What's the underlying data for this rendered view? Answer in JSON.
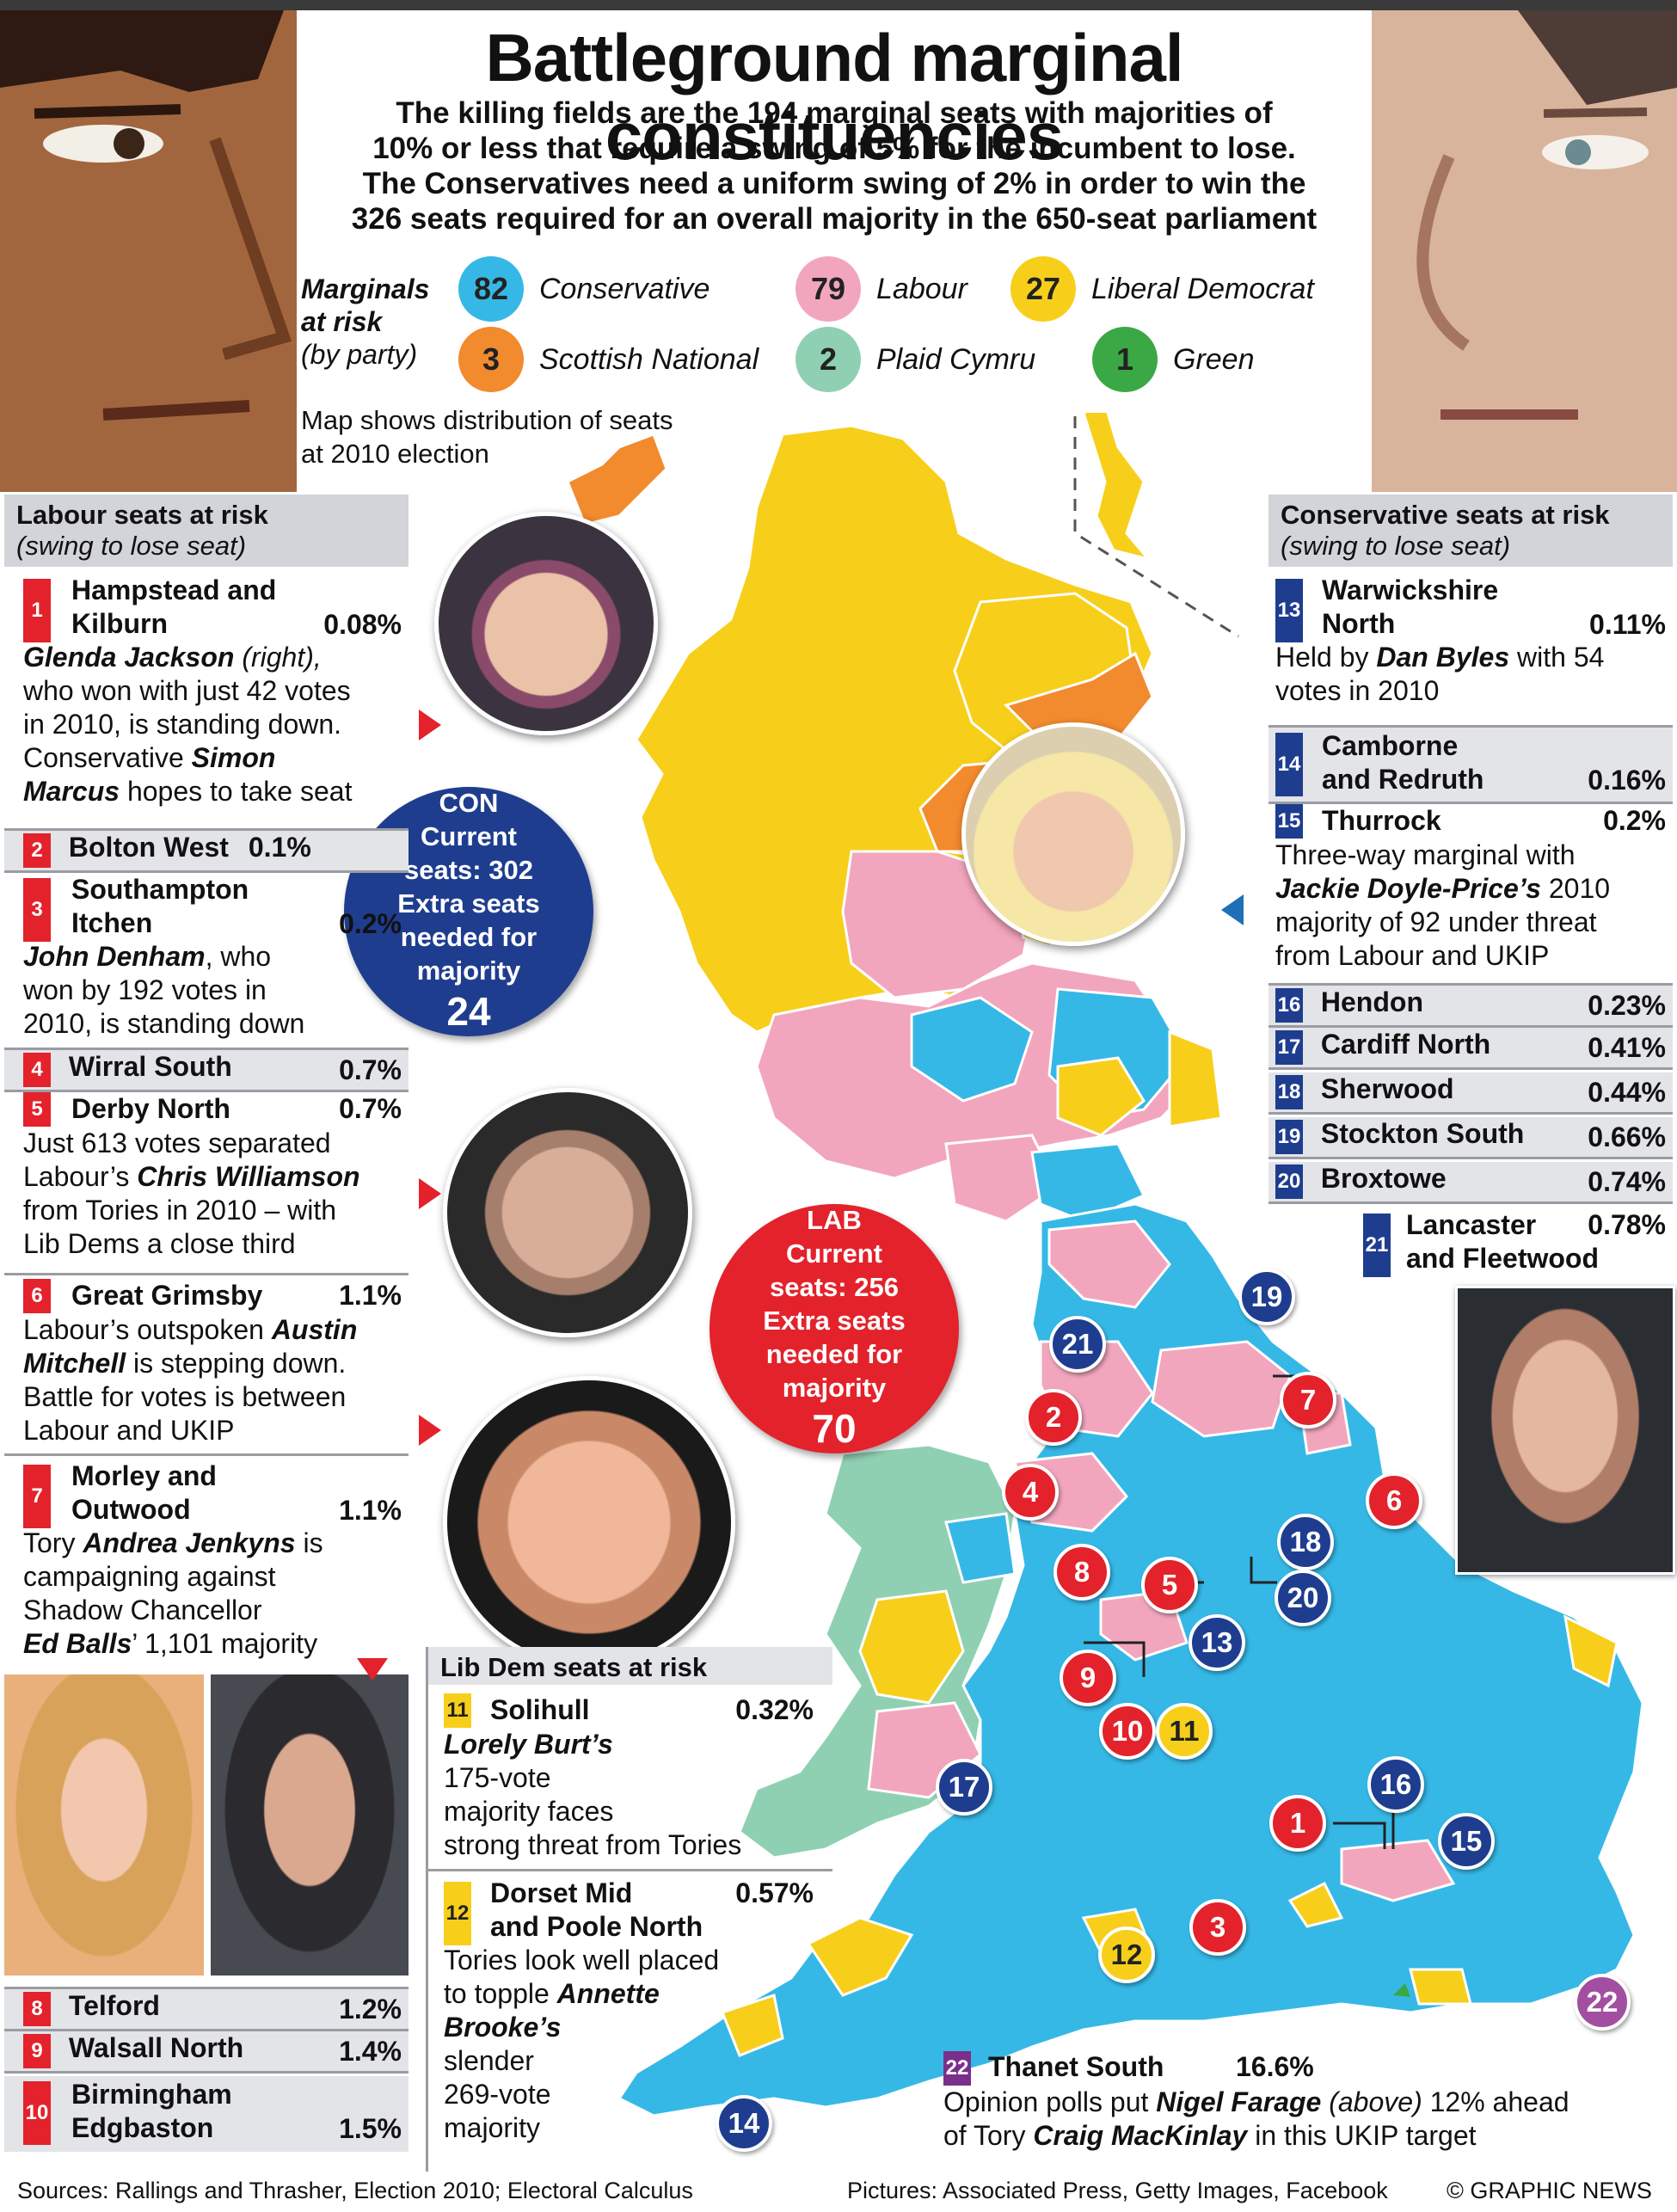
{
  "title": "Battleground marginal constituencies",
  "intro": [
    "The killing fields are the 194 marginal seats with majorities of",
    "10% or less that require a swing of 5% for the incumbent to lose.",
    "The Conservatives need a uniform swing of 2% in order to win the",
    "326 seats required for an overall majority in the 650-seat parliament"
  ],
  "legend": {
    "title_line1": "Marginals",
    "title_line2": "at risk",
    "subtitle": "(by party)",
    "parties": [
      {
        "count": "82",
        "name": "Conservative",
        "color": "#36b8e6"
      },
      {
        "count": "79",
        "name": "Labour",
        "color": "#f2a6bd"
      },
      {
        "count": "27",
        "name": "Liberal Democrat",
        "color": "#f7cf1b"
      },
      {
        "count": "3",
        "name": "Scottish National",
        "color": "#f28a2e"
      },
      {
        "count": "2",
        "name": "Plaid Cymru",
        "color": "#8fd0b3"
      },
      {
        "count": "1",
        "name": "Green",
        "color": "#3aa845"
      }
    ]
  },
  "map_note": [
    "Map shows distribution of seats",
    "at 2010 election"
  ],
  "labour_panel": {
    "heading": "Labour seats at risk",
    "subheading": "(swing to lose seat)",
    "e1": {
      "num": "1",
      "name1": "Hampstead and",
      "name2": "Kilburn",
      "pct": "0.08%",
      "d": [
        "Glenda Jackson",
        " (right),",
        "who won with just 42 votes",
        "in 2010, is standing down.",
        "Conservative ",
        "Simon",
        "Marcus",
        " hopes to take seat"
      ]
    },
    "e2": {
      "num": "2",
      "name": "Bolton West",
      "pct": "0.1%"
    },
    "e3": {
      "num": "3",
      "name1": "Southampton",
      "name2": "Itchen",
      "pct": "0.2%",
      "d": [
        "John Denham",
        ", who",
        "won by 192 votes in",
        "2010, is standing down"
      ]
    },
    "e4": {
      "num": "4",
      "name": "Wirral South",
      "pct": "0.7%"
    },
    "e5": {
      "num": "5",
      "name": "Derby North",
      "pct": "0.7%",
      "d": [
        "Just 613 votes separated",
        "Labour’s ",
        "Chris Williamson",
        "from Tories in 2010 – with",
        "Lib Dems a close third"
      ]
    },
    "e6": {
      "num": "6",
      "name": "Great Grimsby",
      "pct": "1.1%",
      "d": [
        "Labour’s outspoken ",
        "Austin",
        "Mitchell",
        " is stepping down.",
        "Battle for votes is between",
        "Labour and UKIP"
      ]
    },
    "e7": {
      "num": "7",
      "name1": "Morley and",
      "name2": "Outwood",
      "pct": "1.1%",
      "d": [
        "Tory ",
        "Andrea Jenkyns",
        " is",
        "campaigning against",
        "Shadow Chancellor",
        "Ed Balls",
        "’ 1,101 majority"
      ]
    },
    "e8": {
      "num": "8",
      "name": "Telford",
      "pct": "1.2%"
    },
    "e9": {
      "num": "9",
      "name": "Walsall North",
      "pct": "1.4%"
    },
    "e10": {
      "num": "10",
      "name1": "Birmingham",
      "name2": "Edgbaston",
      "pct": "1.5%"
    }
  },
  "con_panel": {
    "heading": "Conservative seats at risk",
    "subheading": "(swing to lose seat)",
    "e13": {
      "num": "13",
      "name1": "Warwickshire",
      "name2": "North",
      "pct": "0.11%",
      "d": [
        "Held by ",
        "Dan Byles",
        " with 54",
        "votes in 2010"
      ]
    },
    "e14": {
      "num": "14",
      "name1": "Camborne",
      "name2": "and Redruth",
      "pct": "0.16%"
    },
    "e15": {
      "num": "15",
      "name": "Thurrock",
      "pct": "0.2%",
      "d": [
        "Three-way marginal with",
        "Jackie Doyle-Price’s",
        " 2010",
        "majority of 92 under threat",
        "from Labour and UKIP"
      ]
    },
    "e16": {
      "num": "16",
      "name": "Hendon",
      "pct": "0.23%"
    },
    "e17": {
      "num": "17",
      "name": "Cardiff North",
      "pct": "0.41%"
    },
    "e18": {
      "num": "18",
      "name": "Sherwood",
      "pct": "0.44%"
    },
    "e19": {
      "num": "19",
      "name": "Stockton South",
      "pct": "0.66%"
    },
    "e20": {
      "num": "20",
      "name": "Broxtowe",
      "pct": "0.74%"
    },
    "e21": {
      "num": "21",
      "name1": "Lancaster",
      "name2": "and Fleetwood",
      "pct": "0.78%"
    }
  },
  "ld_panel": {
    "heading": "Lib Dem seats at risk",
    "e11": {
      "num": "11",
      "name": "Solihull",
      "pct": "0.32%",
      "d": [
        "Lorely Burt’s",
        "175-vote",
        "majority faces",
        "strong threat from Tories"
      ]
    },
    "e12": {
      "num": "12",
      "name1": "Dorset Mid",
      "name2": "and Poole North",
      "pct": "0.57%",
      "d": [
        "Tories look well placed",
        "to topple ",
        "Annette",
        "Brooke’s",
        "slender",
        "269-vote",
        "majority"
      ]
    }
  },
  "ukip": {
    "num": "22",
    "name": "Thanet South",
    "pct": "16.6%",
    "d": [
      "Opinion polls put ",
      "Nigel Farage",
      " (above)",
      " 12% ahead",
      "of Tory ",
      "Craig MacKinlay",
      " in this UKIP target"
    ]
  },
  "con_bubble": {
    "l1": "CON",
    "l2": "Current",
    "l3": "seats: 302",
    "l4": "Extra seats",
    "l5": "needed for",
    "l6": "majority",
    "num": "24"
  },
  "lab_bubble": {
    "l1": "LAB",
    "l2": "Current",
    "l3": "seats: 256",
    "l4": "Extra seats",
    "l5": "needed for",
    "l6": "majority",
    "num": "70"
  },
  "map_markers": [
    "1",
    "2",
    "3",
    "4",
    "5",
    "6",
    "7",
    "8",
    "9",
    "10",
    "11",
    "12",
    "13",
    "14",
    "15",
    "16",
    "17",
    "18",
    "19",
    "20",
    "21",
    "22"
  ],
  "footer": {
    "sources": "Sources: Rallings and Thrasher, Election 2010; Electoral Calculus",
    "pictures": "Pictures: Associated Press, Getty Images, Facebook",
    "credit": "© GRAPHIC NEWS"
  }
}
